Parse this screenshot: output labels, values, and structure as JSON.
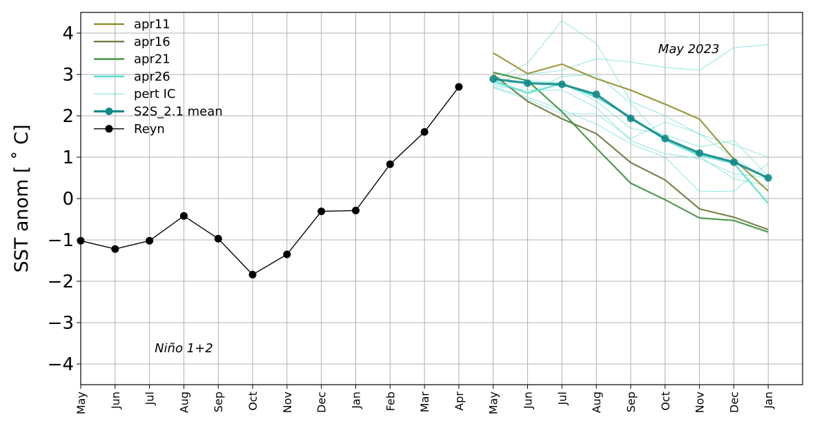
{
  "chart_data": {
    "type": "line",
    "ylabel": "SST anom [$^\\circ$C]",
    "ylabel_display": "SST anom [ ˚ C]",
    "ylim": [
      -4.5,
      4.5
    ],
    "yticks": [
      -4,
      -3,
      -2,
      -1,
      0,
      1,
      2,
      3,
      4
    ],
    "ytick_labels": [
      "−4",
      "−3",
      "−2",
      "−1",
      "0",
      "1",
      "2",
      "3",
      "4"
    ],
    "x_labels": [
      "May",
      "Jun",
      "Jul",
      "Aug",
      "Sep",
      "Oct",
      "Nov",
      "Dec",
      "Jan",
      "Feb",
      "Mar",
      "Apr",
      "May",
      "Jun",
      "Jul",
      "Aug",
      "Sep",
      "Oct",
      "Nov",
      "Dec",
      "Jan"
    ],
    "xlim": [
      0,
      21
    ],
    "grid": true,
    "legend_position": "top-left",
    "annotations": [
      {
        "text": "May 2023",
        "position": "upper-right"
      },
      {
        "text": "Niño 1+2",
        "position": "lower-left"
      }
    ],
    "observed": {
      "name": "Reyn",
      "color": "#000000",
      "x": [
        0,
        1,
        2,
        3,
        4,
        5,
        6,
        7,
        8,
        9,
        10,
        11
      ],
      "values": [
        -1.02,
        -1.22,
        -1.02,
        -0.42,
        -0.97,
        -1.84,
        -1.35,
        -0.31,
        -0.29,
        0.83,
        1.61,
        2.7
      ]
    },
    "forecast_x": [
      12,
      13,
      14,
      15,
      16,
      17,
      18,
      19,
      20
    ],
    "series": [
      {
        "name": "apr11",
        "color": "#8a8a1e",
        "values": [
          3.52,
          3.02,
          3.25,
          2.9,
          2.62,
          2.28,
          1.92,
          0.95,
          0.18
        ]
      },
      {
        "name": "apr16",
        "color": "#5f6f2e",
        "values": [
          3.0,
          2.35,
          1.93,
          1.57,
          0.87,
          0.45,
          -0.25,
          -0.45,
          -0.75
        ]
      },
      {
        "name": "apr21",
        "color": "#2e8b2e",
        "values": [
          3.05,
          2.85,
          2.1,
          1.22,
          0.37,
          -0.03,
          -0.47,
          -0.53,
          -0.81
        ]
      },
      {
        "name": "apr26",
        "color": "#5fded0",
        "values": [
          2.85,
          2.55,
          2.78,
          2.45,
          1.97,
          1.42,
          1.05,
          0.85,
          -0.12
        ]
      }
    ],
    "perturbed": {
      "name": "pert IC",
      "color": "#5fded0",
      "members": [
        [
          2.85,
          3.27,
          4.3,
          3.75,
          2.35,
          2.0,
          1.55,
          1.3,
          1.0
        ],
        [
          2.8,
          3.0,
          3.1,
          3.38,
          3.3,
          3.17,
          3.1,
          3.65,
          3.72
        ],
        [
          2.75,
          2.85,
          2.8,
          2.35,
          1.7,
          1.55,
          1.25,
          1.4,
          0.55
        ],
        [
          2.72,
          2.62,
          2.62,
          2.2,
          1.4,
          1.08,
          0.97,
          0.6,
          0.5
        ],
        [
          2.7,
          2.45,
          2.15,
          1.8,
          1.32,
          1.0,
          0.17,
          0.18,
          0.85
        ],
        [
          2.68,
          2.4,
          2.05,
          2.05,
          1.45,
          1.85,
          1.57,
          0.98,
          0.45
        ],
        [
          2.8,
          2.55,
          2.95,
          3.0,
          2.3,
          1.4,
          1.02,
          0.48,
          0.3
        ]
      ]
    },
    "mean": {
      "name": "S2S_2.1 mean",
      "color": "#138a8a",
      "values": [
        2.89,
        2.79,
        2.76,
        2.52,
        1.94,
        1.45,
        1.1,
        0.88,
        0.5
      ]
    }
  }
}
